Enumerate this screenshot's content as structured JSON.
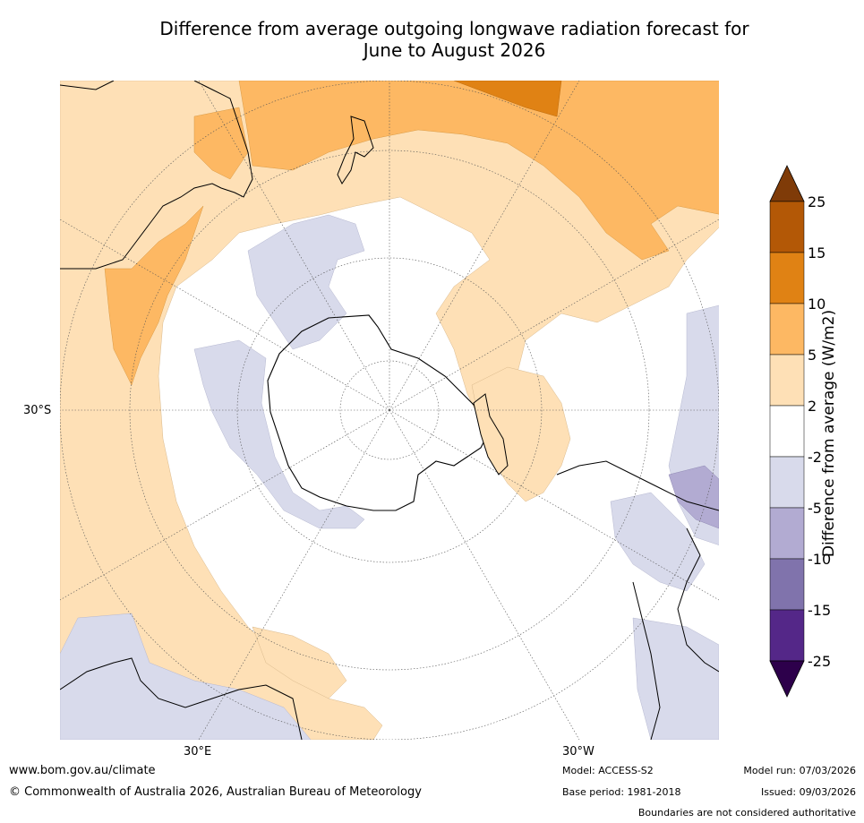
{
  "title": {
    "line1": "Difference from average outgoing longwave radiation forecast for",
    "line2": "June to August 2026"
  },
  "axes": {
    "lat_label": "30°S",
    "lon_label_east": "30°E",
    "lon_label_west": "30°W"
  },
  "colorbar": {
    "title": "Difference from average (W/m2)",
    "ticks": [
      "25",
      "15",
      "10",
      "5",
      "2",
      "-2",
      "-5",
      "-10",
      "-15",
      "-25"
    ],
    "colors": [
      "#7f3b08",
      "#b35806",
      "#e08214",
      "#fdb863",
      "#fee0b6",
      "#ffffff",
      "#d8daeb",
      "#b2abd2",
      "#8073ac",
      "#542788",
      "#2d004b"
    ]
  },
  "footer": {
    "website": "www.bom.gov.au/climate",
    "copyright": "© Commonwealth of Australia 2026, Australian Bureau of Meteorology",
    "model": "Model: ACCESS-S2",
    "base_period": "Base period: 1981-2018",
    "model_run": "Model run: 07/03/2026",
    "issued": "Issued: 09/03/2026",
    "disclaimer": "Boundaries are not considered authoritative"
  }
}
